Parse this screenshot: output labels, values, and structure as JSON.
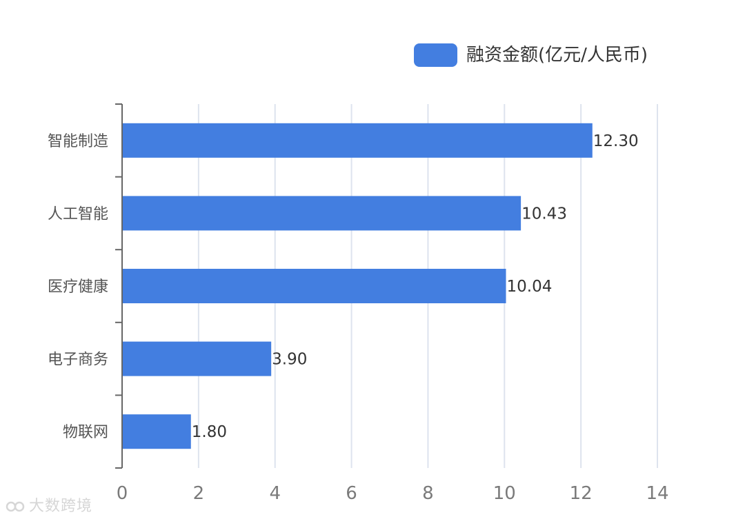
{
  "chart_data": {
    "type": "bar",
    "orientation": "horizontal",
    "categories": [
      "智能制造",
      "人工智能",
      "医疗健康",
      "电子商务",
      "物联网"
    ],
    "series": [
      {
        "name": "融资金额(亿元/人民币)",
        "values": [
          12.3,
          10.43,
          10.04,
          3.9,
          1.8
        ],
        "data_labels": [
          "12.30",
          "10.43",
          "10.04",
          "3.90",
          "1.80"
        ],
        "color": "#437ee0"
      }
    ],
    "xlim": [
      0,
      14
    ],
    "x_ticks": [
      "0",
      "2",
      "4",
      "6",
      "8",
      "10",
      "12",
      "14"
    ],
    "grid": "vertical",
    "legend_position": "top-right"
  },
  "colors": {
    "bar": "#437ee0",
    "grid": "#dde3ee",
    "axis": "#666666"
  },
  "watermark": {
    "text": "大数跨境",
    "icon": "logo-mark-icon"
  }
}
